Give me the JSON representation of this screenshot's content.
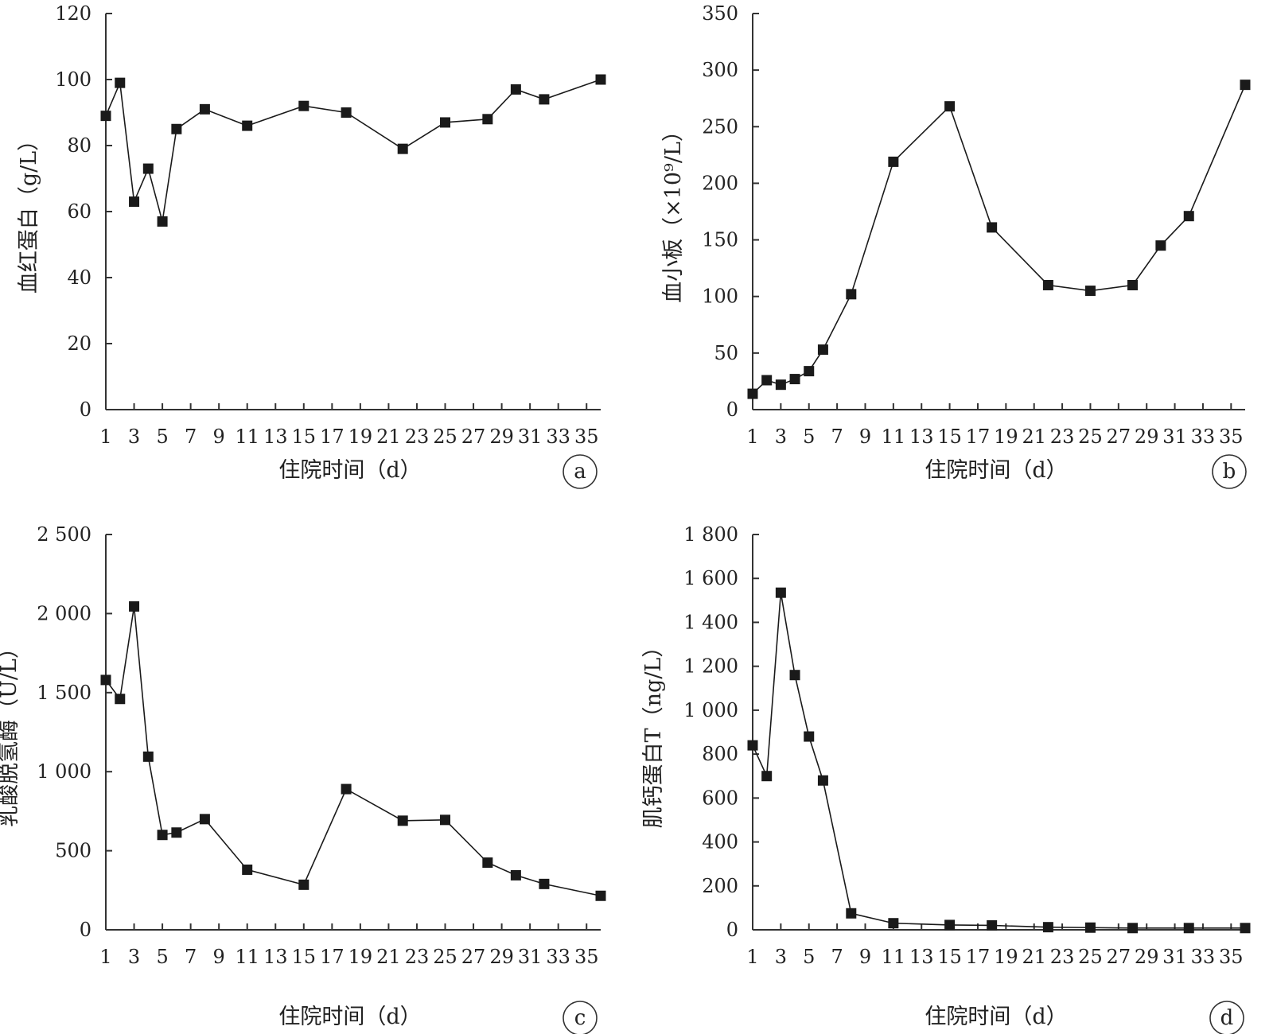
{
  "figure": {
    "panels": [
      "a",
      "b",
      "c",
      "d"
    ],
    "style": {
      "line_color": "#1a1a1a",
      "marker_color": "#1a1a1a",
      "marker": "square",
      "background": "#ffffff"
    }
  },
  "chart_data": [
    {
      "type": "line",
      "panel": "a",
      "ylabel": "血红蛋白（g/L）",
      "xlabel": "住院时间（d）",
      "xlim": [
        1,
        36
      ],
      "ylim": [
        0,
        120
      ],
      "xticks": [
        1,
        3,
        5,
        7,
        9,
        11,
        13,
        15,
        17,
        19,
        21,
        23,
        25,
        27,
        29,
        31,
        33,
        35
      ],
      "xtick_labels": [
        "1",
        "3",
        "5",
        "7",
        "9",
        "11",
        "13",
        "15",
        "17",
        "19",
        "21",
        "23",
        "25",
        "27",
        "29",
        "31",
        "33",
        "35"
      ],
      "yticks": [
        0,
        20,
        40,
        60,
        80,
        100,
        120
      ],
      "ytick_labels": [
        "0",
        "20",
        "40",
        "60",
        "80",
        "100",
        "120"
      ],
      "grid": false,
      "series": [
        {
          "x": [
            1,
            2,
            3,
            4,
            5,
            6,
            8,
            11,
            15,
            18,
            22,
            25,
            28,
            30,
            32,
            36
          ],
          "y": [
            89,
            99,
            63,
            73,
            57,
            85,
            91,
            86,
            92,
            90,
            79,
            87,
            88,
            97,
            94,
            100
          ]
        }
      ]
    },
    {
      "type": "line",
      "panel": "b",
      "ylabel": "血小板（×10⁹/L）",
      "xlabel": "住院时间（d）",
      "xlim": [
        1,
        36
      ],
      "ylim": [
        0,
        350
      ],
      "xticks": [
        1,
        3,
        5,
        7,
        9,
        11,
        13,
        15,
        17,
        19,
        21,
        23,
        25,
        27,
        29,
        31,
        33,
        35
      ],
      "xtick_labels": [
        "1",
        "3",
        "5",
        "7",
        "9",
        "11",
        "13",
        "15",
        "17",
        "19",
        "21",
        "23",
        "25",
        "27",
        "29",
        "31",
        "33",
        "35"
      ],
      "yticks": [
        0,
        50,
        100,
        150,
        200,
        250,
        300,
        350
      ],
      "ytick_labels": [
        "0",
        "50",
        "100",
        "150",
        "200",
        "250",
        "300",
        "350"
      ],
      "grid": false,
      "series": [
        {
          "x": [
            1,
            2,
            3,
            4,
            5,
            6,
            8,
            11,
            15,
            18,
            22,
            25,
            28,
            30,
            32,
            36
          ],
          "y": [
            14,
            26,
            22,
            27,
            34,
            53,
            102,
            219,
            268,
            161,
            110,
            105,
            110,
            145,
            171,
            287
          ]
        }
      ]
    },
    {
      "type": "line",
      "panel": "c",
      "ylabel": "乳酸脱氢酶（U/L）",
      "xlabel": "住院时间（d）",
      "xlim": [
        1,
        36
      ],
      "ylim": [
        0,
        2500
      ],
      "xticks": [
        1,
        3,
        5,
        7,
        9,
        11,
        13,
        15,
        17,
        19,
        21,
        23,
        25,
        27,
        29,
        31,
        33,
        35
      ],
      "xtick_labels": [
        "1",
        "3",
        "5",
        "7",
        "9",
        "11",
        "13",
        "15",
        "17",
        "19",
        "21",
        "23",
        "25",
        "27",
        "29",
        "31",
        "33",
        "35"
      ],
      "yticks": [
        0,
        500,
        1000,
        1500,
        2000,
        2500
      ],
      "ytick_labels": [
        "0",
        "500",
        "1 000",
        "1 500",
        "2 000",
        "2 500"
      ],
      "grid": false,
      "series": [
        {
          "x": [
            1,
            2,
            3,
            4,
            5,
            6,
            8,
            11,
            15,
            18,
            22,
            25,
            28,
            30,
            32,
            36
          ],
          "y": [
            1580,
            1460,
            2045,
            1095,
            600,
            615,
            700,
            380,
            285,
            890,
            690,
            695,
            425,
            345,
            290,
            215
          ]
        }
      ]
    },
    {
      "type": "line",
      "panel": "d",
      "ylabel": "肌钙蛋白T（ng/L）",
      "xlabel": "住院时间（d）",
      "xlim": [
        1,
        36
      ],
      "ylim": [
        0,
        1800
      ],
      "xticks": [
        1,
        3,
        5,
        7,
        9,
        11,
        13,
        15,
        17,
        19,
        21,
        23,
        25,
        27,
        29,
        31,
        33,
        35
      ],
      "xtick_labels": [
        "1",
        "3",
        "5",
        "7",
        "9",
        "11",
        "13",
        "15",
        "17",
        "19",
        "21",
        "23",
        "25",
        "27",
        "29",
        "31",
        "33",
        "35"
      ],
      "yticks": [
        0,
        200,
        400,
        600,
        800,
        1000,
        1200,
        1400,
        1600,
        1800
      ],
      "ytick_labels": [
        "0",
        "200",
        "400",
        "600",
        "800",
        "1 000",
        "1 200",
        "1 400",
        "1 600",
        "1 800"
      ],
      "grid": false,
      "series": [
        {
          "x": [
            1,
            2,
            3,
            4,
            5,
            6,
            8,
            11,
            15,
            18,
            22,
            25,
            28,
            32,
            36
          ],
          "y": [
            840,
            700,
            1535,
            1160,
            880,
            680,
            75,
            30,
            22,
            20,
            12,
            10,
            8,
            8,
            8
          ]
        }
      ]
    }
  ]
}
